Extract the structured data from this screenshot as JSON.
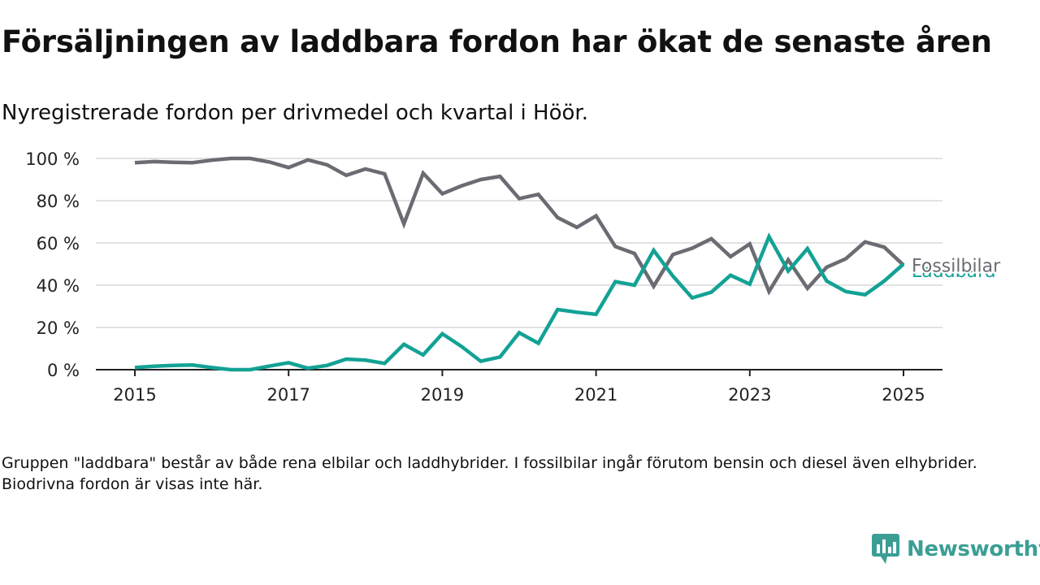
{
  "title": "Försäljningen av laddbara fordon har ökat de senaste åren",
  "subtitle": "Nyregistrerade fordon per drivmedel och kvartal i Höör.",
  "footnote": "Gruppen \"laddbara\" består av både rena elbilar och laddhybrider. I fossilbilar ingår förutom bensin och diesel även elhybrider. Biodrivna fordon är visas inte här.",
  "brand": {
    "name": "Newsworthy",
    "color": "#3b9e95"
  },
  "chart_data": {
    "type": "line",
    "title": "",
    "xlabel": "",
    "ylabel": "",
    "y_unit": "%",
    "ylim": [
      0,
      100
    ],
    "y_ticks": [
      0,
      20,
      40,
      60,
      80,
      100
    ],
    "y_tick_labels": [
      "0 %",
      "20 %",
      "40 %",
      "60 %",
      "80 %",
      "100 %"
    ],
    "x_ticks": [
      2015,
      2017,
      2019,
      2021,
      2023,
      2025
    ],
    "x_tick_labels": [
      "2015",
      "2017",
      "2019",
      "2021",
      "2023",
      "2025"
    ],
    "grid": true,
    "legend": "end-of-line labels",
    "x": [
      "2015-Q1",
      "2015-Q2",
      "2015-Q3",
      "2015-Q4",
      "2016-Q1",
      "2016-Q2",
      "2016-Q3",
      "2016-Q4",
      "2017-Q1",
      "2017-Q2",
      "2017-Q3",
      "2017-Q4",
      "2018-Q1",
      "2018-Q2",
      "2018-Q3",
      "2018-Q4",
      "2019-Q1",
      "2019-Q2",
      "2019-Q3",
      "2019-Q4",
      "2020-Q1",
      "2020-Q2",
      "2020-Q3",
      "2020-Q4",
      "2021-Q1",
      "2021-Q2",
      "2021-Q3",
      "2021-Q4",
      "2022-Q1",
      "2022-Q2",
      "2022-Q3",
      "2022-Q4",
      "2023-Q1",
      "2023-Q2",
      "2023-Q3",
      "2023-Q4",
      "2024-Q1",
      "2024-Q2",
      "2024-Q3",
      "2024-Q4",
      "2025-Q1"
    ],
    "series": [
      {
        "name": "Fossilbilar",
        "color": "#6b6b73",
        "values": [
          98,
          98.5,
          98.2,
          98,
          99.2,
          100,
          100,
          98.3,
          95.7,
          99.3,
          97,
          92,
          95,
          92.7,
          69,
          93,
          83.3,
          87,
          90,
          91.5,
          81,
          83,
          72,
          67.4,
          72.8,
          58.3,
          55,
          39.5,
          54.5,
          57.5,
          62,
          53.5,
          59.5,
          37,
          52,
          38.5,
          48.5,
          52.5,
          60.5,
          58,
          49.5
        ]
      },
      {
        "name": "Laddbara",
        "color": "#13a295",
        "values": [
          1,
          1.6,
          2,
          2.2,
          1,
          0,
          0,
          1.7,
          3.3,
          0.7,
          2,
          5,
          4.5,
          3,
          12,
          7,
          17,
          11,
          4,
          6,
          17.5,
          12.5,
          28.5,
          27.2,
          26.2,
          41.7,
          40,
          56.5,
          44.3,
          34,
          36.7,
          44.7,
          40.5,
          63,
          46.7,
          57.3,
          42,
          37,
          35.5,
          42,
          50
        ]
      }
    ]
  }
}
